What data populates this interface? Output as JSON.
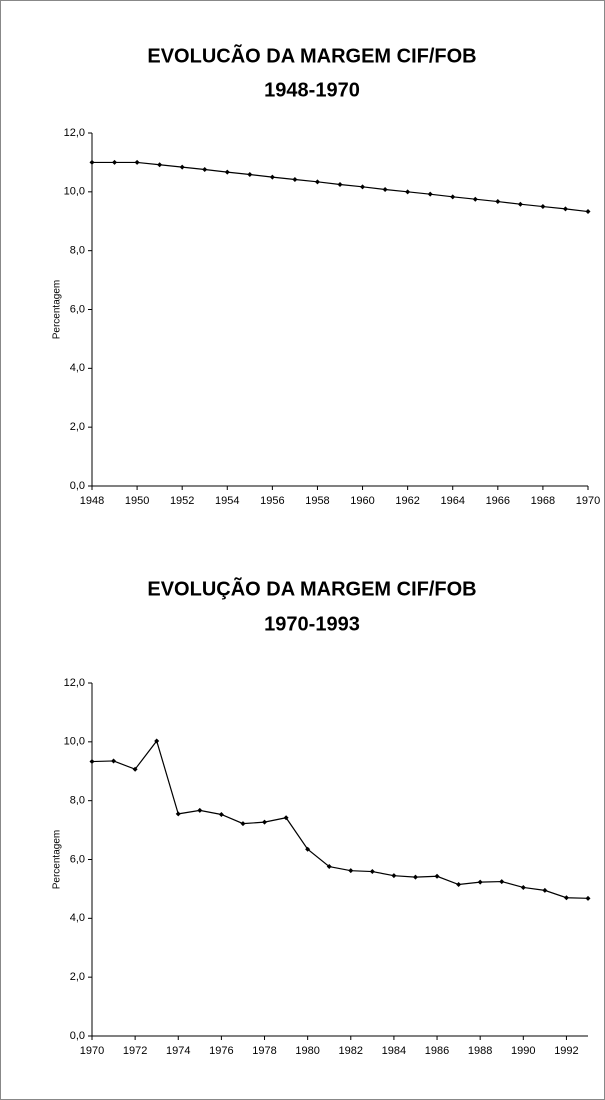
{
  "chart_data": [
    {
      "type": "line",
      "title": "EVOLUCÃO DA MARGEM CIF/FOB",
      "subtitle": "1948-1970",
      "ylabel": "Percentagem",
      "color": "#000000",
      "x": [
        1948,
        1949,
        1950,
        1951,
        1952,
        1953,
        1954,
        1955,
        1956,
        1957,
        1958,
        1959,
        1960,
        1961,
        1962,
        1963,
        1964,
        1965,
        1966,
        1967,
        1968,
        1969,
        1970
      ],
      "values": [
        11.0,
        11.0,
        11.0,
        10.92,
        10.84,
        10.76,
        10.67,
        10.59,
        10.5,
        10.42,
        10.34,
        10.25,
        10.17,
        10.08,
        10.0,
        9.92,
        9.83,
        9.75,
        9.67,
        9.58,
        9.5,
        9.42,
        9.33
      ],
      "xlim": [
        1948,
        1970
      ],
      "xticks": [
        1948,
        1950,
        1952,
        1954,
        1956,
        1958,
        1960,
        1962,
        1964,
        1966,
        1968,
        1970
      ],
      "ylim": [
        0,
        12
      ],
      "yticks": [
        {
          "value": 0,
          "label": "0,0"
        },
        {
          "value": 2,
          "label": "2,0"
        },
        {
          "value": 4,
          "label": "4,0"
        },
        {
          "value": 6,
          "label": "6,0"
        },
        {
          "value": 8,
          "label": "8,0"
        },
        {
          "value": 10,
          "label": "10,0"
        },
        {
          "value": 12,
          "label": "12,0"
        }
      ]
    },
    {
      "type": "line",
      "title": "EVOLUÇÃO DA MARGEM CIF/FOB",
      "subtitle": "1970-1993",
      "ylabel": "Percentagem",
      "color": "#000000",
      "x": [
        1970,
        1971,
        1972,
        1973,
        1974,
        1975,
        1976,
        1977,
        1978,
        1979,
        1980,
        1981,
        1982,
        1983,
        1984,
        1985,
        1986,
        1987,
        1988,
        1989,
        1990,
        1991,
        1992,
        1993
      ],
      "values": [
        9.33,
        9.35,
        9.07,
        10.03,
        7.55,
        7.67,
        7.53,
        7.22,
        7.27,
        7.42,
        6.35,
        5.76,
        5.62,
        5.59,
        5.45,
        5.4,
        5.43,
        5.15,
        5.23,
        5.25,
        5.05,
        4.95,
        4.7,
        4.68
      ],
      "xlim": [
        1970,
        1993
      ],
      "xticks": [
        1970,
        1972,
        1974,
        1976,
        1978,
        1980,
        1982,
        1984,
        1986,
        1988,
        1990,
        1992
      ],
      "ylim": [
        0,
        12
      ],
      "yticks": [
        {
          "value": 0,
          "label": "0,0"
        },
        {
          "value": 2,
          "label": "2,0"
        },
        {
          "value": 4,
          "label": "4,0"
        },
        {
          "value": 6,
          "label": "6,0"
        },
        {
          "value": 8,
          "label": "8,0"
        },
        {
          "value": 10,
          "label": "10,0"
        },
        {
          "value": 12,
          "label": "12,0"
        }
      ]
    }
  ]
}
